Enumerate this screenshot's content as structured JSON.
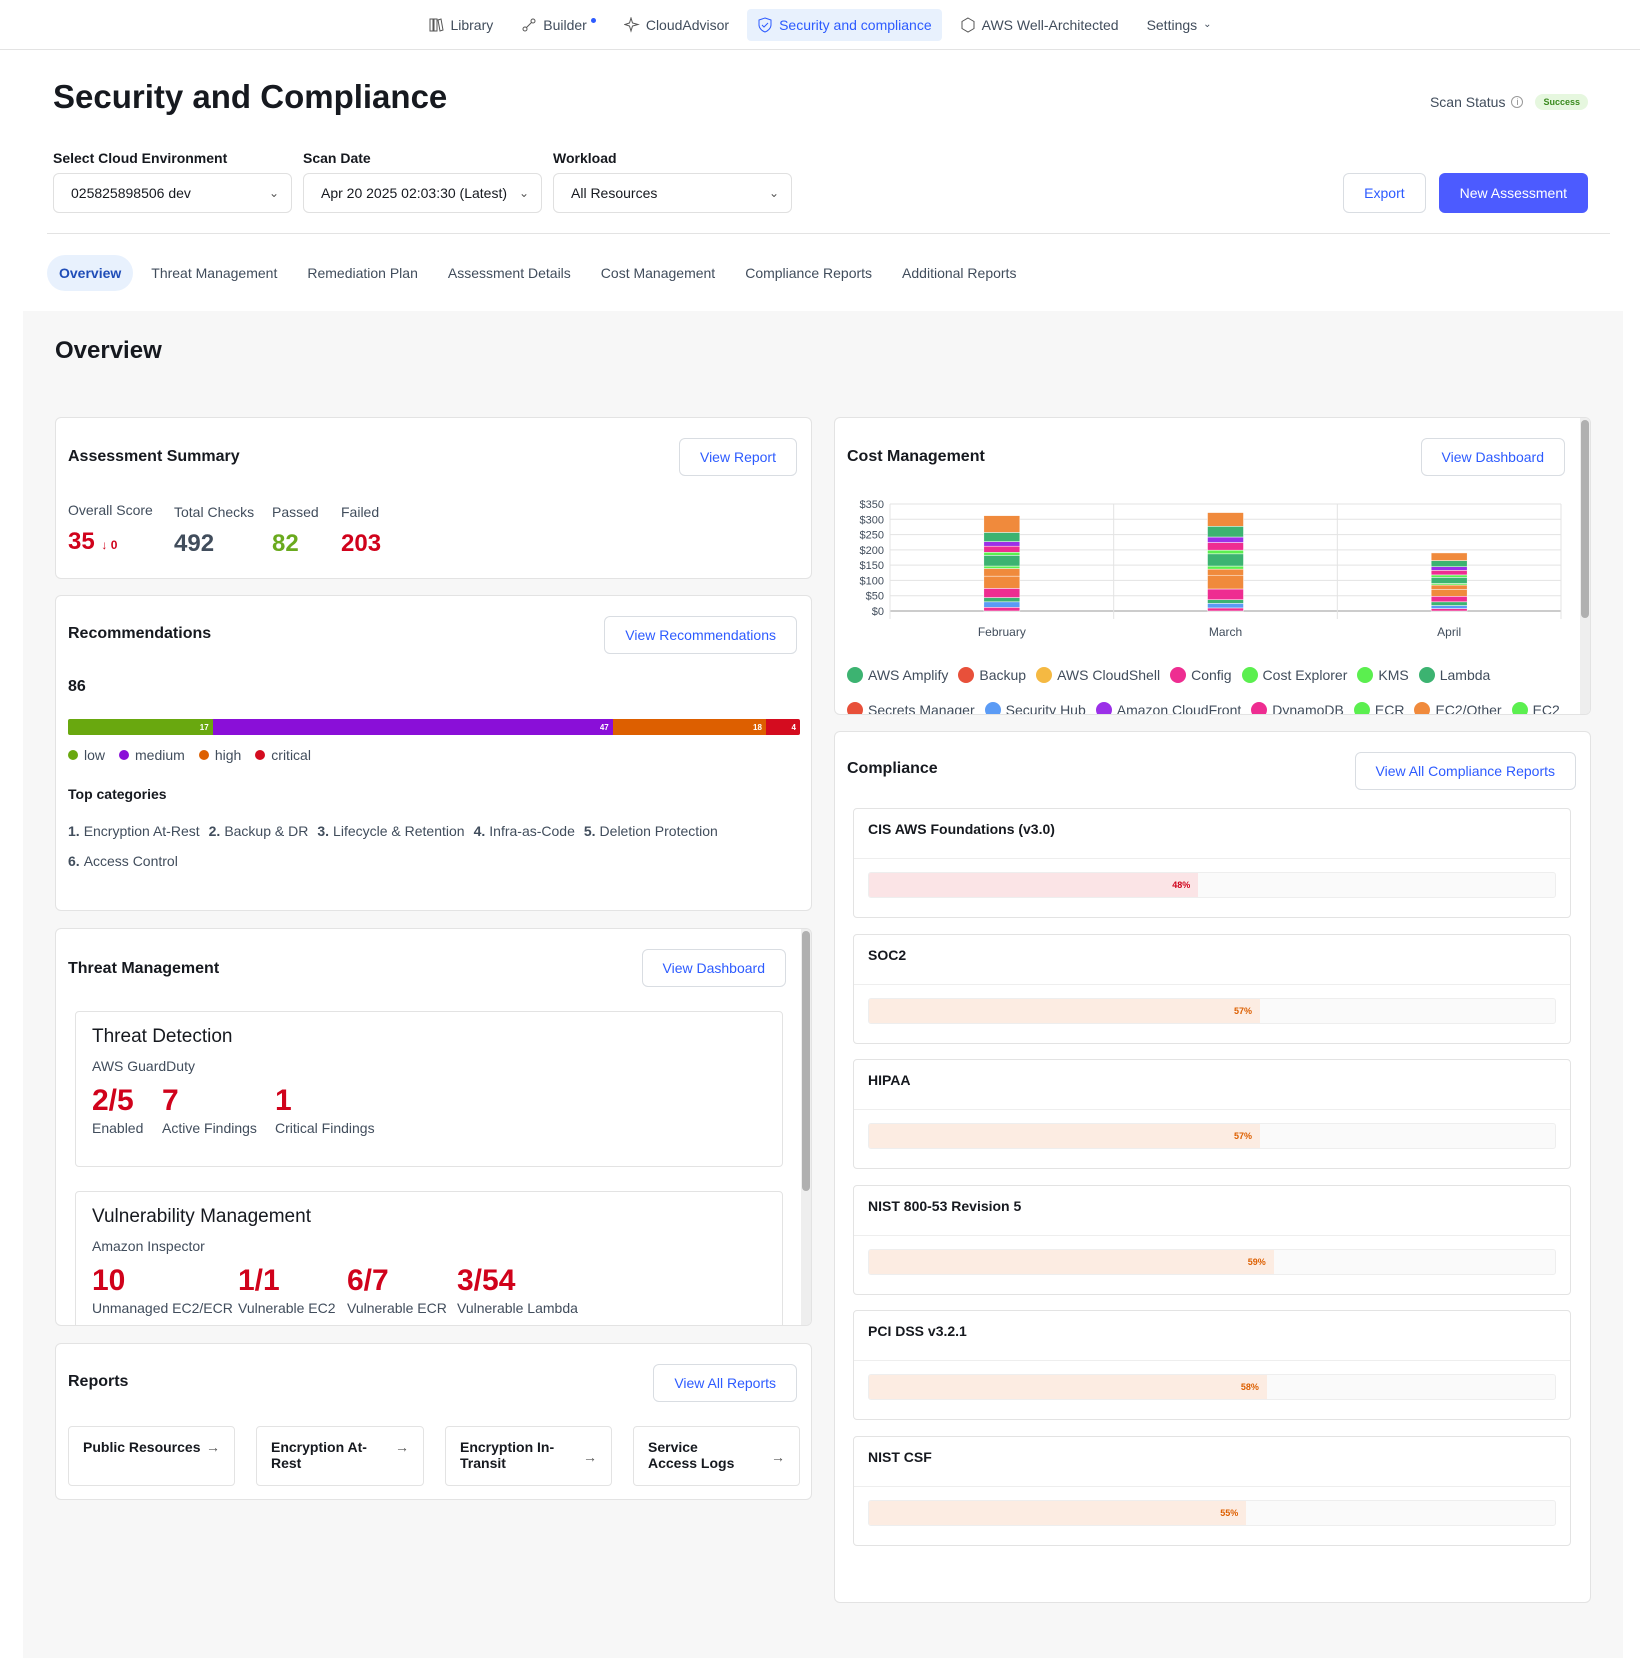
{
  "topnav": [
    {
      "label": "Library",
      "icon": "library-icon",
      "active": false
    },
    {
      "label": "Builder",
      "icon": "builder-icon",
      "active": false
    },
    {
      "label": "CloudAdvisor",
      "icon": "sparkle-icon",
      "active": false
    },
    {
      "label": "Security and compliance",
      "icon": "shield-icon",
      "active": true
    },
    {
      "label": "AWS Well-Architected",
      "icon": "hexagon-icon",
      "active": false
    },
    {
      "label": "Settings",
      "icon": "chevron-down-icon",
      "active": false
    }
  ],
  "header": {
    "title": "Security and Compliance",
    "scan_status_label": "Scan Status",
    "scan_status_value": "Success"
  },
  "filters": {
    "env_label": "Select Cloud Environment",
    "env_value": "025825898506 dev",
    "date_label": "Scan Date",
    "date_value": "Apr 20 2025 02:03:30 (Latest)",
    "workload_label": "Workload",
    "workload_value": "All Resources"
  },
  "actions": {
    "export": "Export",
    "new_assessment": "New Assessment"
  },
  "tabs": [
    "Overview",
    "Threat Management",
    "Remediation Plan",
    "Assessment Details",
    "Cost Management",
    "Compliance Reports",
    "Additional Reports"
  ],
  "overview": {
    "title": "Overview"
  },
  "assessment": {
    "title": "Assessment Summary",
    "view_report": "View Report",
    "overall_label": "Overall Score",
    "overall_value": "35",
    "overall_delta": "↓ 0",
    "total_label": "Total Checks",
    "total_value": "492",
    "passed_label": "Passed",
    "passed_value": "82",
    "failed_label": "Failed",
    "failed_value": "203"
  },
  "recommendations": {
    "title": "Recommendations",
    "button": "View Recommendations",
    "total": "86",
    "segments": [
      {
        "name": "low",
        "value": 17,
        "label": "17",
        "color": "#69a80f"
      },
      {
        "name": "medium",
        "value": 47,
        "label": "47",
        "color": "#8a0fd8"
      },
      {
        "name": "high",
        "value": 18,
        "label": "18",
        "color": "#dd5f00"
      },
      {
        "name": "critical",
        "value": 4,
        "label": "4",
        "color": "#d40c1f"
      }
    ],
    "top_categories_label": "Top categories",
    "categories": [
      {
        "n": "1.",
        "label": "Encryption At-Rest"
      },
      {
        "n": "2.",
        "label": "Backup & DR"
      },
      {
        "n": "3.",
        "label": "Lifecycle & Retention"
      },
      {
        "n": "4.",
        "label": "Infra-as-Code"
      },
      {
        "n": "5.",
        "label": "Deletion Protection"
      },
      {
        "n": "6.",
        "label": "Access Control"
      }
    ]
  },
  "threat": {
    "title": "Threat Management",
    "button": "View Dashboard",
    "detection": {
      "title": "Threat Detection",
      "source": "AWS GuardDuty",
      "stats": [
        {
          "value": "2/5",
          "label": "Enabled"
        },
        {
          "value": "7",
          "label": "Active Findings"
        },
        {
          "value": "1",
          "label": "Critical Findings"
        }
      ]
    },
    "vuln": {
      "title": "Vulnerability Management",
      "source": "Amazon Inspector",
      "stats": [
        {
          "value": "10",
          "label": "Unmanaged EC2/ECR"
        },
        {
          "value": "1/1",
          "label": "Vulnerable EC2"
        },
        {
          "value": "6/7",
          "label": "Vulnerable ECR"
        },
        {
          "value": "3/54",
          "label": "Vulnerable Lambda"
        }
      ]
    }
  },
  "reports": {
    "title": "Reports",
    "button": "View All Reports",
    "items": [
      "Public Resources",
      "Encryption At-Rest",
      "Encryption In-Transit",
      "Service Access Logs"
    ],
    "arrow": "→"
  },
  "cost": {
    "title": "Cost Management",
    "button": "View Dashboard",
    "legend_row1": [
      {
        "name": "AWS Amplify",
        "color": "#3cb371"
      },
      {
        "name": "Backup",
        "color": "#e8503a"
      },
      {
        "name": "AWS CloudShell",
        "color": "#f5b942"
      },
      {
        "name": "Config",
        "color": "#ee2d91"
      },
      {
        "name": "Cost Explorer",
        "color": "#5bef4f"
      },
      {
        "name": "KMS",
        "color": "#5bef4f"
      },
      {
        "name": "Lambda",
        "color": "#3cb371"
      }
    ],
    "legend_row2": [
      {
        "name": "Secrets Manager",
        "color": "#e8503a"
      },
      {
        "name": "Security Hub",
        "color": "#5b9bf5"
      },
      {
        "name": "Amazon CloudFront",
        "color": "#9b30e8"
      },
      {
        "name": "DynamoDB",
        "color": "#ee2d91"
      },
      {
        "name": "ECR",
        "color": "#5bef4f"
      },
      {
        "name": "EC2/Other",
        "color": "#f08a3c"
      },
      {
        "name": "EC2",
        "color": "#5bef4f"
      }
    ]
  },
  "chart_data": {
    "type": "bar",
    "stacked": true,
    "categories": [
      "February",
      "March",
      "April"
    ],
    "totals": [
      312,
      322,
      190
    ],
    "ylim": [
      0,
      350
    ],
    "yticks": [
      "$0",
      "$50",
      "$100",
      "$150",
      "$200",
      "$250",
      "$300",
      "$350"
    ],
    "ytick_values": [
      0,
      50,
      100,
      150,
      200,
      250,
      300,
      350
    ],
    "segment_colors": [
      "#ee2d91",
      "#5b9bf5",
      "#3cb371",
      "#ee2d91",
      "#f08a3c",
      "#f08a3c",
      "#5bef4f",
      "#3cb371",
      "#5bef4f",
      "#ee2d91",
      "#9b30e8",
      "#3cb371",
      "#f08a3c"
    ],
    "segments": [
      [
        12,
        18,
        14,
        30,
        40,
        25,
        8,
        35,
        10,
        20,
        15,
        30,
        55
      ],
      [
        10,
        15,
        12,
        35,
        45,
        20,
        10,
        40,
        12,
        25,
        18,
        35,
        45
      ],
      [
        8,
        10,
        12,
        18,
        22,
        15,
        5,
        20,
        8,
        15,
        12,
        20,
        25
      ]
    ],
    "grid": true
  },
  "compliance": {
    "title": "Compliance",
    "button": "View All Compliance Reports",
    "items": [
      {
        "name": "CIS AWS Foundations (v3.0)",
        "pct": 48,
        "label": "48%",
        "bg": "#fbe4e6",
        "fg": "#d0021b"
      },
      {
        "name": "SOC2",
        "pct": 57,
        "label": "57%",
        "bg": "#fcece2",
        "fg": "#dd5f00"
      },
      {
        "name": "HIPAA",
        "pct": 57,
        "label": "57%",
        "bg": "#fcece2",
        "fg": "#dd5f00"
      },
      {
        "name": "NIST 800-53 Revision 5",
        "pct": 59,
        "label": "59%",
        "bg": "#fcece2",
        "fg": "#dd5f00"
      },
      {
        "name": "PCI DSS v3.2.1",
        "pct": 58,
        "label": "58%",
        "bg": "#fcece2",
        "fg": "#dd5f00"
      },
      {
        "name": "NIST CSF",
        "pct": 55,
        "label": "55%",
        "bg": "#fcece2",
        "fg": "#dd5f00"
      }
    ]
  }
}
